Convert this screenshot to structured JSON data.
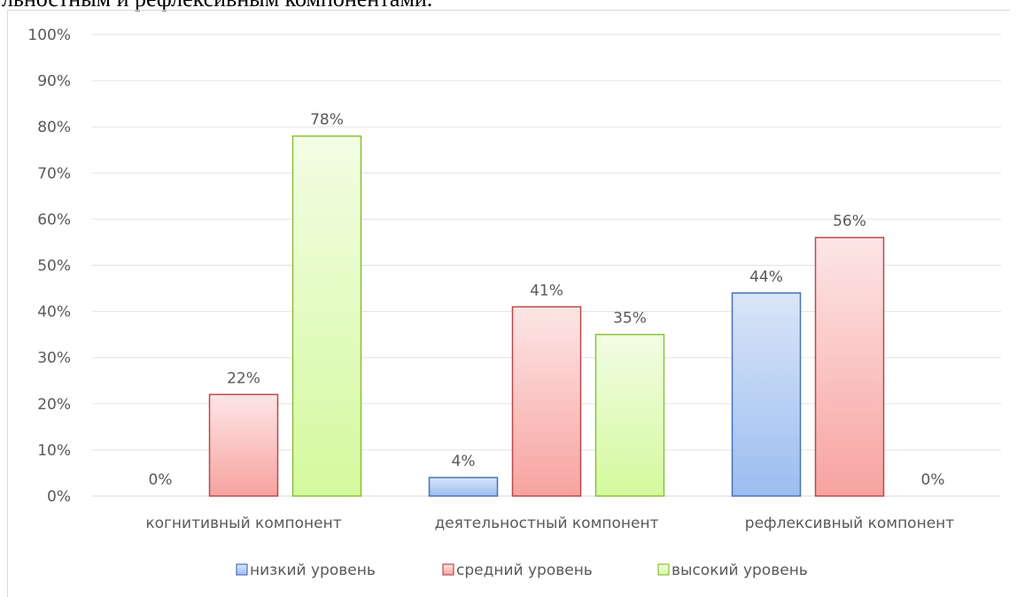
{
  "caption": "льностным и рефлексивным компонентами.",
  "chart_data": {
    "type": "bar",
    "categories": [
      "когнитивный компонент",
      "деятельностный компонент",
      "рефлексивный компонент"
    ],
    "series": [
      {
        "name": "низкий уровень",
        "values": [
          0,
          4,
          44
        ],
        "labels": [
          "0%",
          "4%",
          "44%"
        ],
        "fill_top": "#dae5f8",
        "fill_bottom": "#9bbdf0",
        "stroke": "#4a72b8"
      },
      {
        "name": "средний уровень",
        "values": [
          22,
          41,
          56
        ],
        "labels": [
          "22%",
          "41%",
          "56%"
        ],
        "fill_top": "#fde6e6",
        "fill_bottom": "#f7a3a0",
        "stroke": "#b84a4a"
      },
      {
        "name": "высокий уровень",
        "values": [
          78,
          35,
          0
        ],
        "labels": [
          "78%",
          "35%",
          "0%"
        ],
        "fill_top": "#f2fde4",
        "fill_bottom": "#d4f99d",
        "stroke": "#8cbf3a"
      }
    ],
    "ylim": [
      0,
      100
    ],
    "ytick_labels": [
      "0%",
      "10%",
      "20%",
      "30%",
      "40%",
      "50%",
      "60%",
      "70%",
      "80%",
      "90%",
      "100%"
    ],
    "grid": true,
    "legend_position": "bottom"
  }
}
